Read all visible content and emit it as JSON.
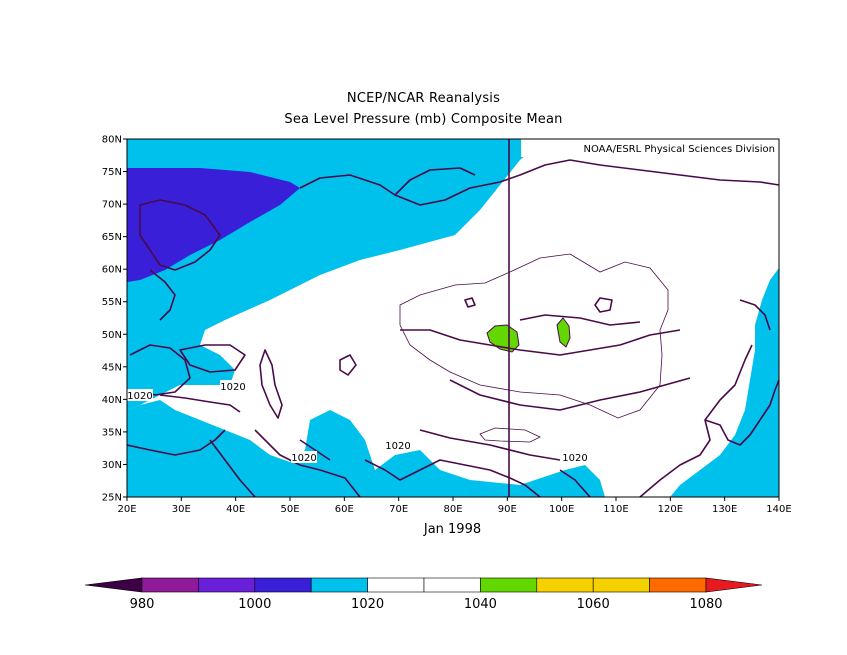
{
  "title": "NCEP/NCAR Reanalysis",
  "subtitle": "Sea Level Pressure (mb) Composite Mean",
  "credit": "NOAA/ESRL Physical Sciences Division",
  "period": "Jan 1998",
  "lon_ticks": [
    "20E",
    "30E",
    "40E",
    "50E",
    "60E",
    "70E",
    "80E",
    "90E",
    "100E",
    "110E",
    "120E",
    "130E",
    "140E"
  ],
  "lat_ticks": [
    "80N",
    "75N",
    "70N",
    "65N",
    "60N",
    "55N",
    "50N",
    "45N",
    "40N",
    "35N",
    "30N",
    "25N"
  ],
  "contour_labels": [
    "1020",
    "1020",
    "1020",
    "1020",
    "1020"
  ],
  "colorbar": {
    "labels": [
      "980",
      "1000",
      "1020",
      "1040",
      "1060",
      "1080"
    ],
    "colors": [
      "#3d0045",
      "#8f1a9a",
      "#6a1fd8",
      "#3a1fd8",
      "#00c0ec",
      "#ffffff",
      "#ffffff",
      "#62d800",
      "#f5d100",
      "#f5d100",
      "#ff6a00",
      "#e8191f"
    ]
  },
  "map_colors": {
    "band_1000_1010": "#3a1fd8",
    "band_1010_1020": "#00c0ec",
    "band_1020_1040": "#ffffff",
    "band_1040_1050": "#62d800",
    "coast": "#4a0a4a"
  }
}
